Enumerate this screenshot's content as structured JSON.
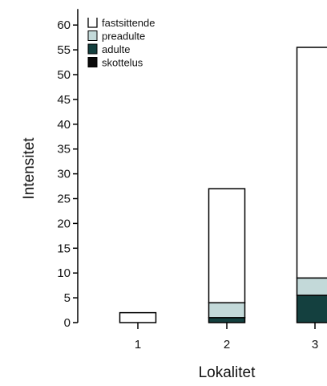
{
  "chart_data": {
    "type": "bar",
    "stacked": true,
    "categories": [
      "1",
      "2",
      "3"
    ],
    "series": [
      {
        "name": "skottelus",
        "color": "#0a0a0a",
        "values": [
          0,
          0,
          0
        ]
      },
      {
        "name": "adulte",
        "color": "#14403f",
        "values": [
          0,
          1,
          5.5
        ]
      },
      {
        "name": "preadulte",
        "color": "#c3d9d9",
        "values": [
          0,
          3,
          3.5
        ]
      },
      {
        "name": "fastsittende",
        "color": "#ffffff",
        "values": [
          2,
          23,
          46.5
        ]
      }
    ],
    "xlabel": "Lokalitet",
    "ylabel": "Intensitet",
    "ylim": [
      0,
      60
    ],
    "yticks": [
      0,
      5,
      10,
      15,
      20,
      25,
      30,
      35,
      40,
      45,
      50,
      55,
      60
    ],
    "grid": false,
    "legend_position": "top-left",
    "legend_order": [
      "fastsittende",
      "preadulte",
      "adulte",
      "skottelus"
    ]
  }
}
